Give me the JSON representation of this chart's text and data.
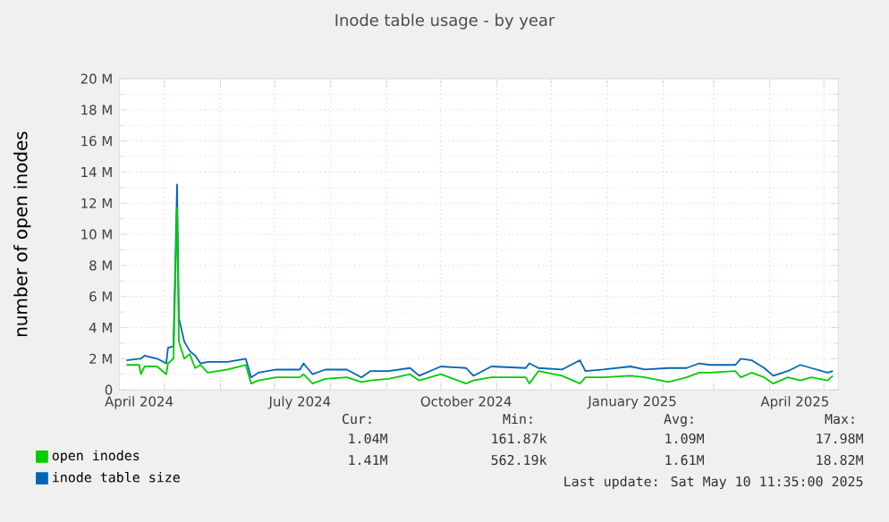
{
  "chart_data": {
    "type": "line",
    "title": "Inode table usage - by year",
    "ylabel": "number of open inodes",
    "x": [
      "2024-04-10",
      "2024-04-17",
      "2024-04-18",
      "2024-04-20",
      "2024-04-27",
      "2024-05-02",
      "2024-05-03",
      "2024-05-06",
      "2024-05-08",
      "2024-05-09",
      "2024-05-12",
      "2024-05-15",
      "2024-05-18",
      "2024-05-21",
      "2024-05-25",
      "2024-06-05",
      "2024-06-15",
      "2024-06-18",
      "2024-06-22",
      "2024-07-02",
      "2024-07-15",
      "2024-07-17",
      "2024-07-22",
      "2024-07-29",
      "2024-08-10",
      "2024-08-18",
      "2024-08-23",
      "2024-09-02",
      "2024-09-14",
      "2024-09-19",
      "2024-10-01",
      "2024-10-15",
      "2024-10-19",
      "2024-10-29",
      "2024-11-17",
      "2024-11-19",
      "2024-11-24",
      "2024-12-07",
      "2024-12-17",
      "2024-12-20",
      "2024-12-30",
      "2025-01-14",
      "2025-01-22",
      "2025-02-04",
      "2025-02-14",
      "2025-02-21",
      "2025-02-27",
      "2025-03-13",
      "2025-03-16",
      "2025-03-22",
      "2025-03-29",
      "2025-04-03",
      "2025-04-11",
      "2025-04-18",
      "2025-04-24",
      "2025-05-03",
      "2025-05-06"
    ],
    "series": [
      {
        "name": "open inodes",
        "color": "#00cc00",
        "values": [
          1600000,
          1600000,
          1000000,
          1500000,
          1500000,
          1000000,
          1700000,
          2000000,
          11700000,
          3100000,
          2000000,
          2300000,
          1400000,
          1600000,
          1100000,
          1300000,
          1600000,
          400000,
          600000,
          800000,
          800000,
          1000000,
          400000,
          700000,
          800000,
          500000,
          600000,
          700000,
          1000000,
          600000,
          1000000,
          400000,
          600000,
          800000,
          800000,
          400000,
          1200000,
          900000,
          400000,
          800000,
          800000,
          900000,
          800000,
          500000,
          800000,
          1100000,
          1100000,
          1200000,
          800000,
          1100000,
          800000,
          400000,
          800000,
          600000,
          800000,
          600000,
          900000
        ]
      },
      {
        "name": "inode table size",
        "color": "#0066b3",
        "values": [
          1900000,
          2000000,
          2000000,
          2200000,
          2000000,
          1700000,
          2700000,
          2800000,
          13200000,
          4600000,
          3100000,
          2500000,
          2200000,
          1700000,
          1800000,
          1800000,
          2000000,
          800000,
          1100000,
          1300000,
          1300000,
          1700000,
          1000000,
          1300000,
          1300000,
          800000,
          1200000,
          1200000,
          1400000,
          900000,
          1500000,
          1400000,
          900000,
          1500000,
          1400000,
          1700000,
          1400000,
          1300000,
          1900000,
          1200000,
          1300000,
          1500000,
          1300000,
          1400000,
          1400000,
          1700000,
          1600000,
          1600000,
          2000000,
          1900000,
          1400000,
          900000,
          1200000,
          1600000,
          1400000,
          1100000,
          1200000
        ]
      }
    ],
    "xlim": [
      "2024-04-06",
      "2025-05-09"
    ],
    "xticks": [
      {
        "value": "2024-05-01",
        "label": null
      },
      {
        "value": "2024-06-01",
        "label": null
      },
      {
        "value": "2024-07-01",
        "label": null
      },
      {
        "value": "2024-08-01",
        "label": null
      },
      {
        "value": "2024-09-01",
        "label": null
      },
      {
        "value": "2024-10-01",
        "label": null
      },
      {
        "value": "2024-11-01",
        "label": null
      },
      {
        "value": "2024-12-01",
        "label": null
      },
      {
        "value": "2025-01-01",
        "label": null
      },
      {
        "value": "2025-02-01",
        "label": null
      },
      {
        "value": "2025-03-01",
        "label": null
      },
      {
        "value": "2025-04-01",
        "label": null
      },
      {
        "value": "2025-05-01",
        "label": null
      },
      {
        "value": "2024-04-17",
        "label": "April 2024"
      },
      {
        "value": "2024-07-15",
        "label": "July 2024"
      },
      {
        "value": "2024-10-15",
        "label": "October 2024"
      },
      {
        "value": "2025-01-15",
        "label": "January 2025"
      },
      {
        "value": "2025-04-15",
        "label": "April 2025"
      }
    ],
    "ylim": [
      0,
      20000000
    ],
    "yticks": [
      0,
      {
        "value": 2000000,
        "label": "2 M"
      },
      {
        "value": 4000000,
        "label": "4 M"
      },
      {
        "value": 6000000,
        "label": "6 M"
      },
      {
        "value": 8000000,
        "label": "8 M"
      },
      {
        "value": 10000000,
        "label": "10 M"
      },
      {
        "value": 12000000,
        "label": "12 M"
      },
      {
        "value": 14000000,
        "label": "14 M"
      },
      {
        "value": 16000000,
        "label": "16 M"
      },
      {
        "value": 18000000,
        "label": "18 M"
      },
      {
        "value": 20000000,
        "label": "20 M"
      }
    ],
    "grid": true,
    "legend": "bottom",
    "annotations": [
      "Cur:",
      "Min:",
      "Avg:",
      "Max:",
      "1.04M",
      "161.87k",
      "1.09M",
      "17.98M",
      "1.41M",
      "562.19k",
      "1.61M",
      "18.82M",
      "Last update:  Sat May 10 11:35:00 2025"
    ]
  }
}
